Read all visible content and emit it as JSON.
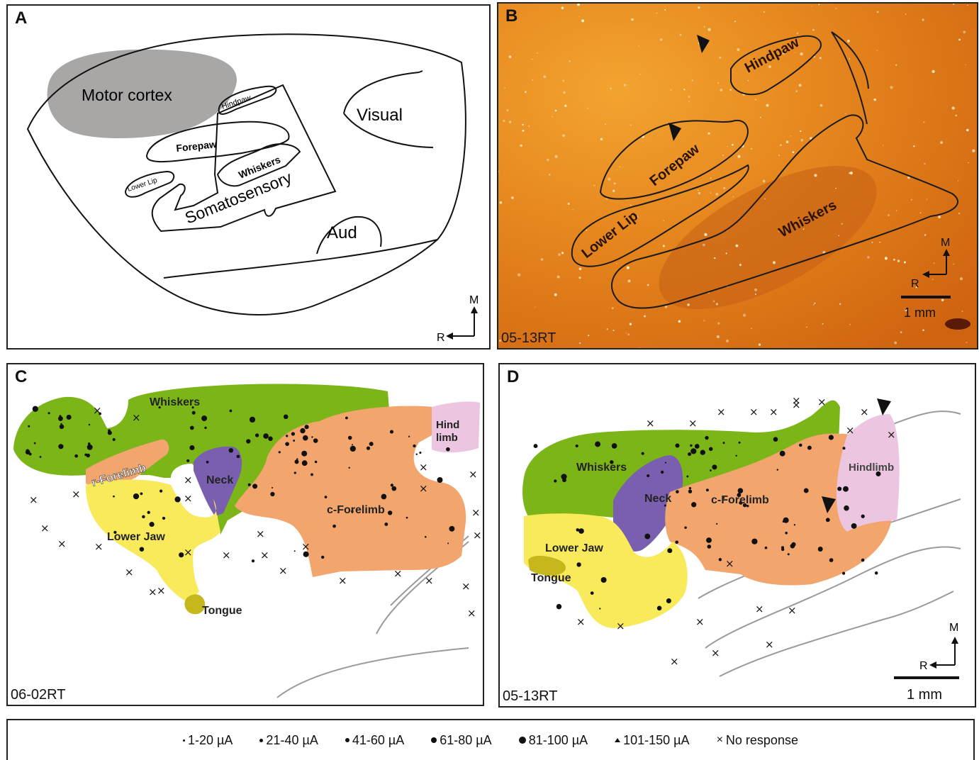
{
  "panelA": {
    "label": "A",
    "regions": {
      "motor": "Motor cortex",
      "hindpaw": "Hindpaw",
      "forepaw": "Forepaw",
      "whiskers": "Whiskers",
      "lowerlip": "Lower Lip",
      "somatosensory": "Somatosensory",
      "visual": "Visual",
      "aud": "Aud"
    },
    "compass": {
      "m": "M",
      "r": "R"
    }
  },
  "panelB": {
    "label": "B",
    "regions": {
      "hindpaw": "Hindpaw",
      "forepaw": "Forepaw",
      "lowerlip": "Lower Lip",
      "whiskers": "Whiskers"
    },
    "compass": {
      "m": "M",
      "r": "R"
    },
    "scale": "1 mm",
    "id": "05-13RT"
  },
  "panelC": {
    "label": "C",
    "regions": {
      "whiskers": "Whiskers",
      "hindlimb": "Hind limb",
      "hind": "Hind",
      "limb": "limb",
      "rforelimb": "r-Forelimb",
      "neck": "Neck",
      "cforelimb": "c-Forelimb",
      "lowerjaw": "Lower Jaw",
      "tongue": "Tongue"
    },
    "id": "06-02RT"
  },
  "panelD": {
    "label": "D",
    "regions": {
      "whiskers": "Whiskers",
      "neck": "Neck",
      "cforelimb": "c-Forelimb",
      "hindlimb": "Hindlimb",
      "lowerjaw": "Lower Jaw",
      "tongue": "Tongue"
    },
    "compass": {
      "m": "M",
      "r": "R"
    },
    "scale": "1 mm",
    "id": "05-13RT"
  },
  "legend": {
    "items": [
      {
        "label": "1-20 µA",
        "marker": "dot-1"
      },
      {
        "label": "21-40 µA",
        "marker": "dot-2"
      },
      {
        "label": "41-60 µA",
        "marker": "dot-3"
      },
      {
        "label": "61-80 µA",
        "marker": "dot-4"
      },
      {
        "label": "81-100 µA",
        "marker": "dot-5"
      },
      {
        "label": "101-150 µA",
        "marker": "triangle"
      },
      {
        "label": "No response",
        "marker": "x"
      }
    ]
  },
  "colors": {
    "whiskers": "#7cb518",
    "neck": "#7a5fb0",
    "forelimb": "#f2a66e",
    "lowerjaw": "#f8ea5a",
    "tongue": "#c6b81c",
    "hindlimb": "#ecc6e0",
    "motor": "#a9a6a6",
    "orange": "#e07818"
  }
}
